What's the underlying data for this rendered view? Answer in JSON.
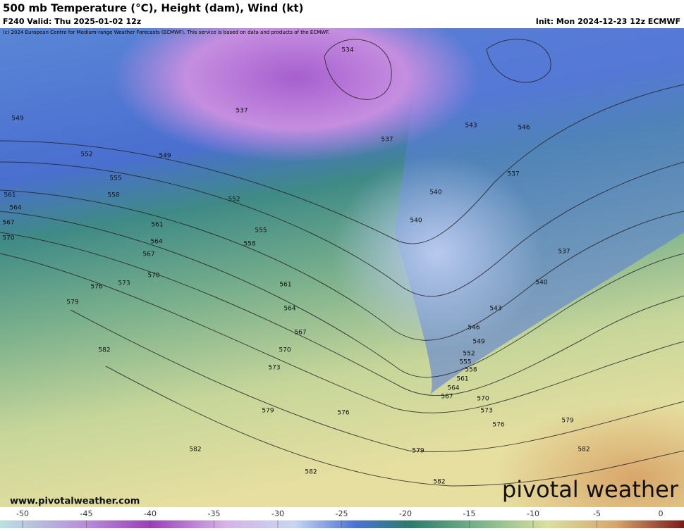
{
  "header": {
    "title": "500 mb Temperature (°C), Height (dam), Wind (kt)",
    "valid": "F240 Valid: Thu 2025-01-02 12z",
    "init": "Init: Mon 2024-12-23 12z ECMWF",
    "copyright": "(c) 2024 European Centre for Medium-range Weather Forecasts (ECMWF). This service is based on data and products of the ECMWF."
  },
  "map": {
    "contour_labels": [
      534,
      537,
      537,
      537,
      537,
      540,
      540,
      540,
      543,
      543,
      546,
      546,
      549,
      549,
      549,
      552,
      552,
      552,
      555,
      555,
      555,
      558,
      558,
      558,
      561,
      561,
      561,
      561,
      564,
      564,
      564,
      564,
      567,
      567,
      567,
      567,
      570,
      570,
      570,
      570,
      573,
      573,
      573,
      576,
      576,
      576,
      579,
      579,
      579,
      579,
      582,
      582,
      582,
      582,
      582
    ]
  },
  "footer": {
    "website": "www.pivotalweather.com",
    "brand": "pivotal weather"
  },
  "colorbar": {
    "ticks": [
      -50,
      -45,
      -40,
      -35,
      -30,
      -25,
      -20,
      -15,
      -10,
      -5,
      0
    ]
  }
}
